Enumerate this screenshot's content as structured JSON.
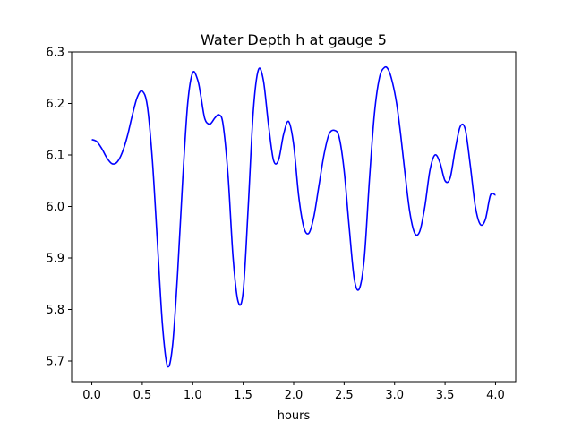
{
  "chart_data": {
    "type": "line",
    "title": "Water Depth h at gauge 5",
    "xlabel": "hours",
    "ylabel": "",
    "xlim": [
      -0.2,
      4.2
    ],
    "ylim": [
      5.66,
      6.3
    ],
    "xticks": [
      0.0,
      0.5,
      1.0,
      1.5,
      2.0,
      2.5,
      3.0,
      3.5,
      4.0
    ],
    "xtick_labels": [
      "0.0",
      "0.5",
      "1.0",
      "1.5",
      "2.0",
      "2.5",
      "3.0",
      "3.5",
      "4.0"
    ],
    "yticks": [
      5.7,
      5.8,
      5.9,
      6.0,
      6.1,
      6.2,
      6.3
    ],
    "ytick_labels": [
      "5.7",
      "5.8",
      "5.9",
      "6.0",
      "6.1",
      "6.2",
      "6.3"
    ],
    "grid": false,
    "colors": {
      "line": "#0000ff",
      "axes": "#000000",
      "background": "#ffffff"
    },
    "series": [
      {
        "x": [
          0.0,
          0.05,
          0.1,
          0.15,
          0.2,
          0.25,
          0.3,
          0.35,
          0.4,
          0.45,
          0.5,
          0.55,
          0.6,
          0.65,
          0.7,
          0.75,
          0.8,
          0.85,
          0.9,
          0.95,
          1.0,
          1.05,
          1.08,
          1.12,
          1.17,
          1.22,
          1.26,
          1.3,
          1.35,
          1.4,
          1.45,
          1.5,
          1.55,
          1.6,
          1.65,
          1.7,
          1.75,
          1.8,
          1.85,
          1.9,
          1.95,
          2.0,
          2.05,
          2.1,
          2.15,
          2.2,
          2.25,
          2.3,
          2.35,
          2.4,
          2.45,
          2.5,
          2.55,
          2.6,
          2.65,
          2.7,
          2.75,
          2.8,
          2.85,
          2.9,
          2.94,
          2.98,
          3.02,
          3.06,
          3.1,
          3.15,
          3.2,
          3.25,
          3.3,
          3.35,
          3.4,
          3.45,
          3.5,
          3.55,
          3.6,
          3.65,
          3.7,
          3.75,
          3.8,
          3.85,
          3.9,
          3.95,
          4.0
        ],
        "y": [
          6.13,
          6.126,
          6.112,
          6.094,
          6.083,
          6.086,
          6.104,
          6.135,
          6.176,
          6.212,
          6.224,
          6.195,
          6.09,
          5.93,
          5.77,
          5.69,
          5.73,
          5.87,
          6.05,
          6.2,
          6.26,
          6.245,
          6.215,
          6.17,
          6.16,
          6.172,
          6.178,
          6.16,
          6.06,
          5.9,
          5.815,
          5.835,
          6.0,
          6.185,
          6.265,
          6.245,
          6.16,
          6.09,
          6.09,
          6.14,
          6.165,
          6.12,
          6.02,
          5.96,
          5.948,
          5.98,
          6.04,
          6.1,
          6.14,
          6.148,
          6.135,
          6.07,
          5.96,
          5.86,
          5.84,
          5.9,
          6.05,
          6.18,
          6.25,
          6.27,
          6.265,
          6.24,
          6.2,
          6.14,
          6.07,
          5.99,
          5.948,
          5.952,
          6.0,
          6.07,
          6.1,
          6.085,
          6.05,
          6.055,
          6.11,
          6.155,
          6.15,
          6.08,
          6.0,
          5.965,
          5.975,
          6.022,
          6.022
        ]
      }
    ]
  }
}
